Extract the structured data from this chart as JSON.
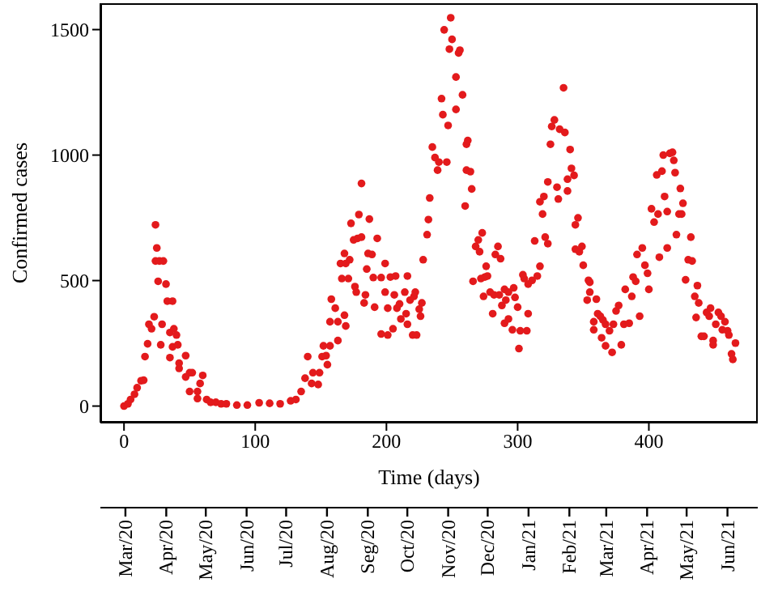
{
  "chart_data": {
    "type": "scatter",
    "xlabel": "Time (days)",
    "ylabel": "Confirmed cases",
    "marker": "circle",
    "xlim": [
      -18,
      483
    ],
    "xticks": [
      0,
      100,
      200,
      300,
      400
    ],
    "ylim": [
      -66,
      1605
    ],
    "yticks": [
      0,
      500,
      1000,
      1500
    ],
    "x2lim": [
      "2020-02-11",
      "2021-06-24"
    ],
    "x2ticks": [
      {
        "value": "2020-03",
        "label": "Mar/20"
      },
      {
        "value": "2020-04",
        "label": "Apr/20"
      },
      {
        "value": "2020-05",
        "label": "May/20"
      },
      {
        "value": "2020-06",
        "label": "Jun/20"
      },
      {
        "value": "2020-07",
        "label": "Jul/20"
      },
      {
        "value": "2020-08",
        "label": "Aug/20"
      },
      {
        "value": "2020-09",
        "label": "Seg/20"
      },
      {
        "value": "2020-10",
        "label": "Oct/20"
      },
      {
        "value": "2020-11",
        "label": "Nov/20"
      },
      {
        "value": "2020-12",
        "label": "Dec/20"
      },
      {
        "value": "2021-01",
        "label": "Jan/21"
      },
      {
        "value": "2021-02",
        "label": "Feb/21"
      },
      {
        "value": "2021-03",
        "label": "Mar/21"
      },
      {
        "value": "2021-04",
        "label": "Apr/21"
      },
      {
        "value": "2021-05",
        "label": "May/21"
      },
      {
        "value": "2021-06",
        "label": "Jun/21"
      }
    ],
    "series": [
      {
        "color": "#e31a1c",
        "x": [
          0,
          3,
          5,
          8,
          10,
          13,
          15,
          16,
          18,
          19,
          21,
          23,
          24,
          25,
          24,
          27,
          30,
          26,
          29,
          28,
          32,
          33,
          37,
          35,
          38,
          37,
          35,
          40,
          41,
          42,
          42,
          47,
          50,
          47,
          52,
          50,
          56,
          60,
          58,
          56,
          63,
          66,
          70,
          74,
          78,
          86,
          94,
          103,
          111,
          119,
          127,
          131,
          135,
          138,
          140,
          143,
          144,
          148,
          149,
          151,
          152,
          157,
          155,
          154,
          157,
          158,
          161,
          163,
          163,
          165,
          166,
          168,
          169,
          169,
          168,
          171,
          173,
          172,
          175,
          176,
          177,
          178,
          179,
          181,
          181,
          183,
          184,
          185,
          186,
          187,
          189,
          193,
          191,
          190,
          196,
          196,
          199,
          199,
          201,
          203,
          201,
          206,
          205,
          207,
          208,
          210,
          211,
          214,
          216,
          215,
          216,
          218,
          220,
          221,
          222,
          223,
          225,
          227,
          226,
          228,
          231,
          232,
          233,
          235,
          237,
          239,
          240,
          242,
          243,
          244,
          246,
          247,
          248,
          249,
          250,
          253,
          253,
          255,
          256,
          258,
          260,
          261,
          262,
          261,
          264,
          265,
          266,
          268,
          270,
          271,
          272,
          273,
          274,
          275,
          276,
          277,
          279,
          281,
          282,
          283,
          285,
          286,
          287,
          288,
          290,
          290,
          291,
          293,
          293,
          296,
          297,
          298,
          300,
          301,
          302,
          304,
          305,
          307,
          308,
          308,
          311,
          313,
          315,
          317,
          317,
          319,
          320,
          321,
          323,
          323,
          325,
          326,
          328,
          330,
          331,
          332,
          335,
          336,
          338,
          340,
          338,
          341,
          343,
          344,
          346,
          344,
          347,
          349,
          350,
          354,
          355,
          353,
          355,
          358,
          360,
          361,
          363,
          358,
          365,
          367,
          364,
          367,
          370,
          372,
          373,
          375,
          377,
          379,
          381,
          382,
          385,
          387,
          388,
          390,
          391,
          393,
          395,
          397,
          399,
          400,
          402,
          404,
          406,
          407,
          408,
          410,
          411,
          412,
          414,
          414,
          416,
          418,
          419,
          420,
          421,
          423,
          424,
          425,
          426,
          428,
          430,
          432,
          433,
          435,
          437,
          436,
          438,
          440,
          442,
          444,
          446,
          447,
          449,
          449,
          451,
          453,
          455,
          456,
          458,
          460,
          461,
          463,
          464,
          466
        ],
        "values": [
          0,
          9,
          26,
          47,
          73,
          101,
          103,
          197,
          248,
          326,
          308,
          356,
          722,
          630,
          578,
          578,
          578,
          497,
          326,
          244,
          486,
          418,
          418,
          293,
          308,
          236,
          193,
          283,
          244,
          150,
          171,
          201,
          133,
          116,
          133,
          58,
          58,
          122,
          90,
          30,
          26,
          15,
          15,
          9,
          9,
          4,
          4,
          13,
          11,
          9,
          21,
          26,
          58,
          111,
          197,
          90,
          133,
          86,
          133,
          197,
          240,
          240,
          165,
          201,
          336,
          426,
          390,
          336,
          261,
          568,
          508,
          608,
          568,
          319,
          362,
          508,
          728,
          583,
          662,
          476,
          454,
          668,
          763,
          887,
          673,
          411,
          443,
          546,
          608,
          745,
          604,
          668,
          394,
          512,
          287,
          512,
          568,
          454,
          390,
          514,
          283,
          443,
          308,
          518,
          390,
          407,
          347,
          454,
          518,
          368,
          326,
          422,
          283,
          437,
          454,
          283,
          386,
          411,
          358,
          583,
          683,
          743,
          829,
          1032,
          990,
          940,
          972,
          1225,
          1161,
          1499,
          972,
          1118,
          1422,
          1547,
          1461,
          1182,
          1311,
          1407,
          1418,
          1240,
          797,
          1043,
          1058,
          940,
          934,
          865,
          497,
          636,
          662,
          615,
          508,
          690,
          437,
          514,
          557,
          518,
          454,
          368,
          443,
          604,
          636,
          443,
          587,
          401,
          465,
          330,
          422,
          454,
          347,
          304,
          471,
          433,
          394,
          229,
          300,
          523,
          508,
          300,
          368,
          486,
          501,
          658,
          518,
          557,
          814,
          765,
          835,
          673,
          647,
          893,
          1043,
          1114,
          1140,
          872,
          825,
          1103,
          1268,
          1090,
          857,
          1022,
          904,
          947,
          919,
          722,
          750,
          625,
          615,
          636,
          561,
          501,
          493,
          422,
          454,
          336,
          426,
          368,
          358,
          304,
          343,
          326,
          272,
          240,
          300,
          214,
          326,
          379,
          401,
          244,
          326,
          465,
          330,
          437,
          514,
          497,
          604,
          358,
          630,
          561,
          529,
          465,
          786,
          733,
          921,
          765,
          593,
          936,
          1000,
          835,
          630,
          775,
          1007,
          1011,
          979,
          930,
          683,
          765,
          867,
          765,
          808,
          503,
          583,
          673,
          578,
          437,
          480,
          353,
          411,
          278,
          278,
          373,
          358,
          390,
          261,
          244,
          326,
          373,
          358,
          304,
          336,
          300,
          283,
          208,
          186,
          251
        ]
      }
    ]
  }
}
